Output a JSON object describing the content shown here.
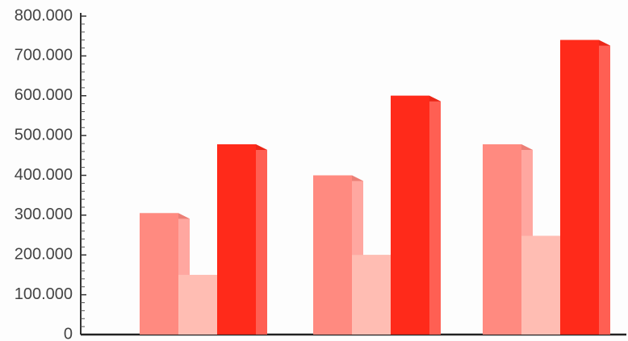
{
  "chart_data": {
    "type": "bar",
    "title": "",
    "xlabel": "",
    "ylabel": "",
    "categories": [
      "",
      "",
      ""
    ],
    "series": [
      {
        "values": [
          305000,
          400000,
          478000
        ],
        "color": "#ff8a80"
      },
      {
        "values": [
          150000,
          200000,
          248000
        ],
        "color": "#ffbdb3"
      },
      {
        "values": [
          478000,
          600000,
          740000
        ],
        "color": "#ff2a1a"
      }
    ],
    "ylim": [
      0,
      800000
    ],
    "y_ticks": [
      0,
      100000,
      200000,
      300000,
      400000,
      500000,
      600000,
      700000,
      800000
    ],
    "y_tick_labels": [
      "0",
      "100.000",
      "200.000",
      "300.000",
      "400.000",
      "500.000",
      "600.000",
      "700.000",
      "800.000"
    ],
    "style": "3d-bar",
    "grid": false,
    "legend": "none"
  }
}
